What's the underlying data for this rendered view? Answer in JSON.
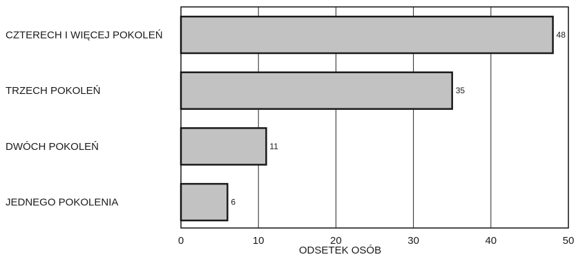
{
  "chart_data": {
    "type": "bar",
    "orientation": "horizontal",
    "categories": [
      "CZTERECH I WIĘCEJ POKOLEŃ",
      "TRZECH POKOLEŃ",
      "DWÓCH POKOLEŃ",
      "JEDNEGO POKOLENIA"
    ],
    "values": [
      48,
      35,
      11,
      6
    ],
    "data_labels": [
      "48",
      "35",
      "11",
      "6"
    ],
    "xlabel": "ODSETEK OSÓB",
    "ylabel": "",
    "title": "",
    "xlim": [
      0,
      50
    ],
    "x_ticks": [
      "0",
      "10",
      "20",
      "30",
      "40",
      "50"
    ],
    "grid": "vertical",
    "legend": "none",
    "colors": {
      "bar_fill": "#c2c2c2",
      "bar_stroke": "#1a1a1a",
      "grid": "#222222"
    }
  }
}
